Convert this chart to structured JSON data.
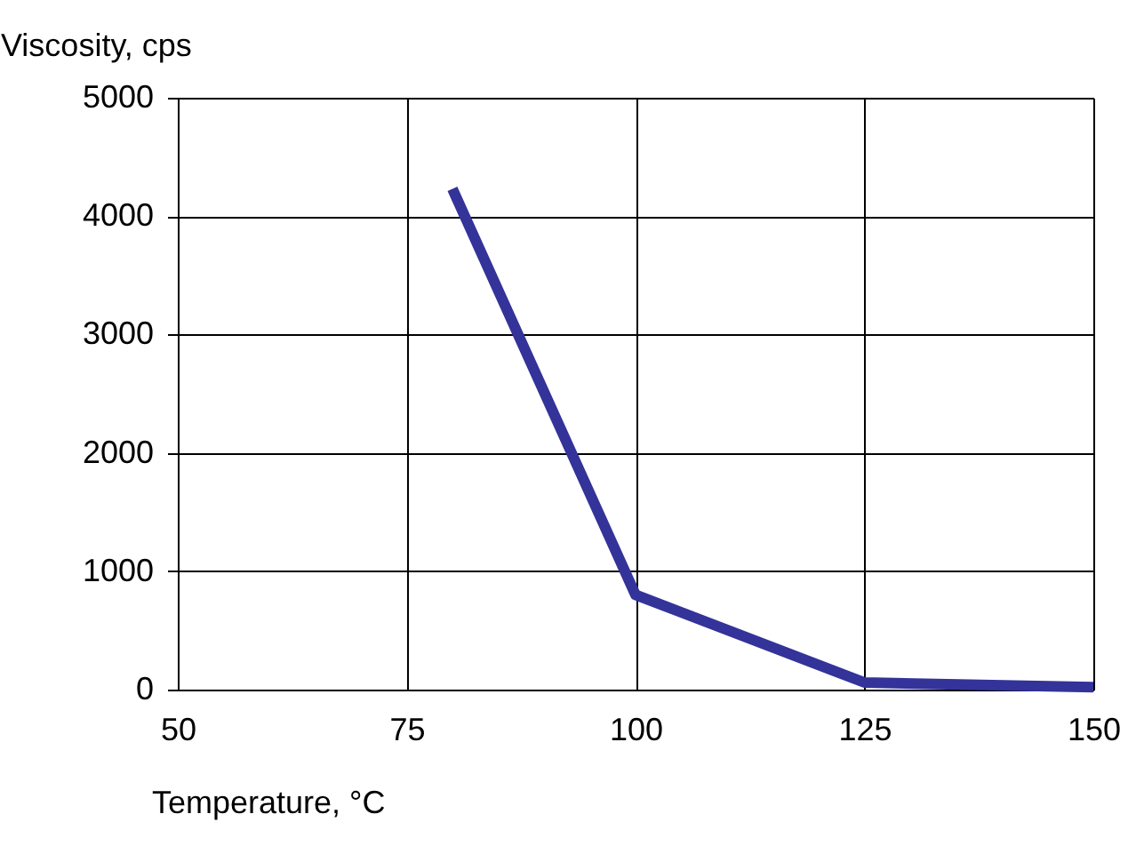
{
  "chart_data": {
    "type": "line",
    "xlabel": "Temperature, °C",
    "ylabel": "Viscosity, cps",
    "x": [
      80,
      100,
      125,
      150
    ],
    "series": [
      {
        "color": "#333399",
        "values": [
          4230,
          800,
          60,
          20
        ]
      }
    ],
    "xlim": [
      50,
      150
    ],
    "xticks": [
      50,
      75,
      100,
      125,
      150
    ],
    "ylim": [
      0,
      5000
    ],
    "yticks": [
      0,
      1000,
      2000,
      3000,
      4000,
      5000
    ],
    "grid": true,
    "marker": "none",
    "line_style": "solid"
  }
}
